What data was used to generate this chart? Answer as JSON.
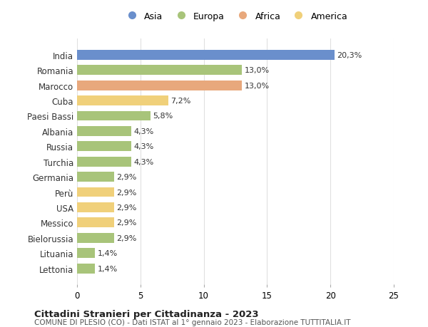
{
  "countries": [
    "India",
    "Romania",
    "Marocco",
    "Cuba",
    "Paesi Bassi",
    "Albania",
    "Russia",
    "Turchia",
    "Germania",
    "Perù",
    "USA",
    "Messico",
    "Bielorussia",
    "Lituania",
    "Lettonia"
  ],
  "values": [
    20.3,
    13.0,
    13.0,
    7.2,
    5.8,
    4.3,
    4.3,
    4.3,
    2.9,
    2.9,
    2.9,
    2.9,
    2.9,
    1.4,
    1.4
  ],
  "labels": [
    "20,3%",
    "13,0%",
    "13,0%",
    "7,2%",
    "5,8%",
    "4,3%",
    "4,3%",
    "4,3%",
    "2,9%",
    "2,9%",
    "2,9%",
    "2,9%",
    "2,9%",
    "1,4%",
    "1,4%"
  ],
  "continents": [
    "Asia",
    "Europa",
    "Africa",
    "America",
    "Europa",
    "Europa",
    "Europa",
    "Europa",
    "Europa",
    "America",
    "America",
    "America",
    "Europa",
    "Europa",
    "Europa"
  ],
  "colors": {
    "Asia": "#6a8fcc",
    "Europa": "#a8c47a",
    "Africa": "#e8a87c",
    "America": "#f0d07a"
  },
  "legend_order": [
    "Asia",
    "Europa",
    "Africa",
    "America"
  ],
  "title": "Cittadini Stranieri per Cittadinanza - 2023",
  "subtitle": "COMUNE DI PLESIO (CO) - Dati ISTAT al 1° gennaio 2023 - Elaborazione TUTTITALIA.IT",
  "xlim": [
    0,
    25
  ],
  "xticks": [
    0,
    5,
    10,
    15,
    20,
    25
  ],
  "background_color": "#ffffff",
  "grid_color": "#e0e0e0"
}
